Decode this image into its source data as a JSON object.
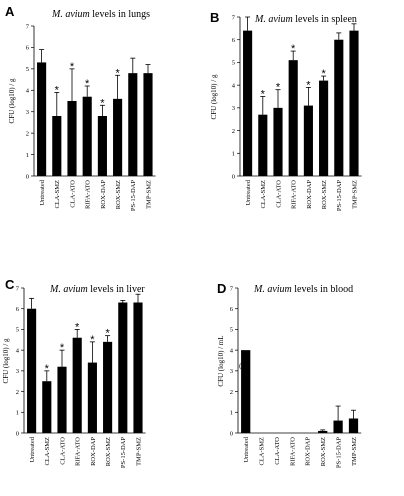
{
  "figure": {
    "bar_color": "#000000",
    "axis_color": "#000000"
  },
  "chart_data": [
    {
      "type": "bar",
      "panel_label": "A",
      "title": {
        "italic": "M. avium",
        "rest": " levels in lungs"
      },
      "ylabel": "CFU (log10) / g",
      "ylim": [
        0,
        7
      ],
      "yticks": [
        0,
        1,
        2,
        3,
        4,
        5,
        6,
        7
      ],
      "categories": [
        "Untreated",
        "CLA-SMZ",
        "CLA-ATO",
        "RIFA-ATO",
        "ROX-DAP",
        "ROX-SMZ",
        "PS-15-DAP",
        "TMP-SMZ"
      ],
      "values": [
        5.3,
        2.8,
        3.5,
        3.7,
        2.8,
        3.6,
        4.8,
        4.8
      ],
      "errors": [
        0.6,
        1.1,
        1.5,
        0.5,
        0.5,
        1.1,
        0.7,
        0.4
      ],
      "significant": [
        false,
        true,
        true,
        true,
        true,
        true,
        false,
        false
      ],
      "annotations": []
    },
    {
      "type": "bar",
      "panel_label": "B",
      "title": {
        "italic": "M. avium",
        "rest": " levels in spleen"
      },
      "ylabel": "CFU (log10) / g",
      "ylim": [
        0,
        7
      ],
      "yticks": [
        0,
        1,
        2,
        3,
        4,
        5,
        6,
        7
      ],
      "categories": [
        "Untreated",
        "CLA-SMZ",
        "CLA-ATO",
        "RIFA-ATO",
        "ROX-DAP",
        "ROX-SMZ",
        "PS-15-DAP",
        "TMP-SMZ"
      ],
      "values": [
        6.4,
        2.7,
        3.0,
        5.1,
        3.1,
        4.2,
        6.0,
        6.4
      ],
      "errors": [
        0.6,
        0.8,
        0.8,
        0.4,
        0.8,
        0.2,
        0.3,
        0.3
      ],
      "significant": [
        false,
        true,
        true,
        true,
        true,
        true,
        false,
        false
      ],
      "annotations": []
    },
    {
      "type": "bar",
      "panel_label": "C",
      "title": {
        "italic": "M. avium",
        "rest": " levels in liver"
      },
      "ylabel": "CFU (log10) / g",
      "ylim": [
        0,
        7
      ],
      "yticks": [
        0,
        1,
        2,
        3,
        4,
        5,
        6,
        7
      ],
      "categories": [
        "Untreated",
        "CLA-SMZ",
        "CLA-ATO",
        "RIFA-ATO",
        "ROX-DAP",
        "ROX-SMZ",
        "PS-15-DAP",
        "TMP-SMZ"
      ],
      "values": [
        6.0,
        2.5,
        3.2,
        4.6,
        3.4,
        4.4,
        6.3,
        6.3
      ],
      "errors": [
        0.5,
        0.5,
        0.8,
        0.4,
        1.0,
        0.3,
        0.1,
        0.4
      ],
      "significant": [
        false,
        true,
        true,
        true,
        true,
        true,
        false,
        false
      ],
      "annotations": []
    },
    {
      "type": "bar",
      "panel_label": "D",
      "title": {
        "italic": "M. avium",
        "rest": " levels in blood"
      },
      "ylabel": "CFU (log10) / mL",
      "ylim": [
        0,
        7
      ],
      "yticks": [
        0,
        1,
        2,
        3,
        4,
        5,
        6,
        7
      ],
      "categories": [
        "Untreated",
        "CLA-SMZ",
        "CLA-ATO",
        "RIFA-ATO",
        "ROX-DAP",
        "ROX-SMZ",
        "PS-15-DAP",
        "TMP-SMZ"
      ],
      "values": [
        4.0,
        0,
        0,
        0,
        0,
        0.1,
        0.6,
        0.7
      ],
      "errors": [
        0,
        0,
        0,
        0,
        0,
        0.05,
        0.7,
        0.4
      ],
      "significant": [
        false,
        false,
        false,
        false,
        false,
        false,
        false,
        false
      ],
      "annotations": [
        {
          "category": "Untreated",
          "text": "(a)"
        }
      ]
    }
  ]
}
